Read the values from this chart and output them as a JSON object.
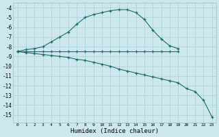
{
  "xlabel": "Humidex (Indice chaleur)",
  "bg_color": "#cce8ec",
  "grid_color": "#aacdd4",
  "line_color": "#1a6b6b",
  "line1_x": [
    0,
    1,
    2,
    3,
    4,
    5,
    6,
    7,
    8,
    9,
    10,
    11,
    12,
    13,
    14,
    15,
    16,
    17,
    18,
    19
  ],
  "line1_y": [
    -8.5,
    -8.3,
    -8.2,
    -8.0,
    -7.5,
    -7.0,
    -6.5,
    -5.7,
    -5.0,
    -4.7,
    -4.5,
    -4.3,
    -4.2,
    -4.2,
    -4.5,
    -5.2,
    -6.3,
    -7.2,
    -7.9,
    -8.2
  ],
  "line2_x": [
    0,
    1,
    2,
    3,
    4,
    5,
    6,
    7,
    8,
    9,
    10,
    11,
    12,
    13,
    14,
    15,
    16,
    17,
    18,
    19
  ],
  "line2_y": [
    -8.5,
    -8.5,
    -8.5,
    -8.5,
    -8.5,
    -8.5,
    -8.5,
    -8.5,
    -8.5,
    -8.5,
    -8.5,
    -8.5,
    -8.5,
    -8.5,
    -8.5,
    -8.5,
    -8.5,
    -8.5,
    -8.5,
    -8.5
  ],
  "line3_x": [
    0,
    1,
    2,
    3,
    4,
    5,
    6,
    7,
    8,
    9,
    10,
    11,
    12,
    13,
    14,
    15,
    16,
    17,
    18,
    19,
    20,
    21,
    22,
    23
  ],
  "line3_y": [
    -8.5,
    -8.6,
    -8.7,
    -8.8,
    -8.9,
    -9.0,
    -9.1,
    -9.3,
    -9.4,
    -9.6,
    -9.8,
    -10.0,
    -10.3,
    -10.5,
    -10.7,
    -10.9,
    -11.1,
    -11.3,
    -11.5,
    -11.7,
    -12.3,
    -12.6,
    -13.5,
    -15.2
  ],
  "xlim": [
    -0.5,
    23.5
  ],
  "ylim": [
    -15.8,
    -3.5
  ],
  "yticks": [
    -4,
    -5,
    -6,
    -7,
    -8,
    -9,
    -10,
    -11,
    -12,
    -13,
    -14,
    -15
  ],
  "xticks": [
    0,
    1,
    2,
    3,
    4,
    5,
    6,
    7,
    8,
    9,
    10,
    11,
    12,
    13,
    14,
    15,
    16,
    17,
    18,
    19,
    20,
    21,
    22,
    23
  ]
}
